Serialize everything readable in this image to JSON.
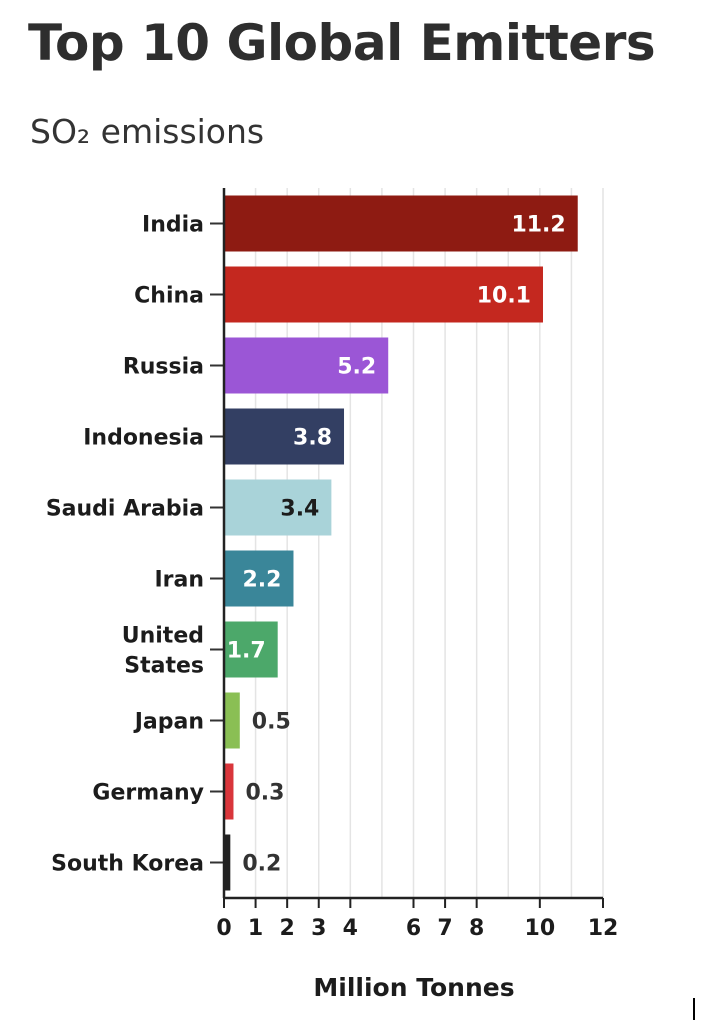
{
  "chart_data": {
    "type": "bar",
    "orientation": "horizontal",
    "title": "Top 10 Global Emitters",
    "subtitle": "SO₂ emissions",
    "xlabel": "Million Tonnes",
    "ylabel": "",
    "xlim": [
      0,
      12
    ],
    "x_ticks": [
      0,
      1,
      2,
      3,
      4,
      6,
      7,
      8,
      10,
      12
    ],
    "grid": true,
    "categories": [
      "India",
      "China",
      "Russia",
      "Indonesia",
      "Saudi Arabia",
      "Iran",
      "United States",
      "Japan",
      "Germany",
      "South Korea"
    ],
    "category_lines": [
      [
        "India"
      ],
      [
        "China"
      ],
      [
        "Russia"
      ],
      [
        "Indonesia"
      ],
      [
        "Saudi Arabia"
      ],
      [
        "Iran"
      ],
      [
        "United",
        "States"
      ],
      [
        "Japan"
      ],
      [
        "Germany"
      ],
      [
        "South Korea"
      ]
    ],
    "values": [
      11.2,
      10.1,
      5.2,
      3.8,
      3.4,
      2.2,
      1.7,
      0.5,
      0.3,
      0.2
    ],
    "value_labels": [
      "11.2",
      "10.1",
      "5.2",
      "3.8",
      "3.4",
      "2.2",
      "1.7",
      "0.5",
      "0.3",
      "0.2"
    ],
    "colors": [
      "#8e1b12",
      "#c4281f",
      "#9b56d6",
      "#333f63",
      "#a9d3d9",
      "#3a8699",
      "#4ca86a",
      "#8abf54",
      "#d9363b",
      "#222222"
    ],
    "label_colors": [
      "#ffffff",
      "#ffffff",
      "#ffffff",
      "#ffffff",
      "#1c1c1c",
      "#ffffff",
      "#ffffff",
      "#333333",
      "#333333",
      "#333333"
    ]
  }
}
